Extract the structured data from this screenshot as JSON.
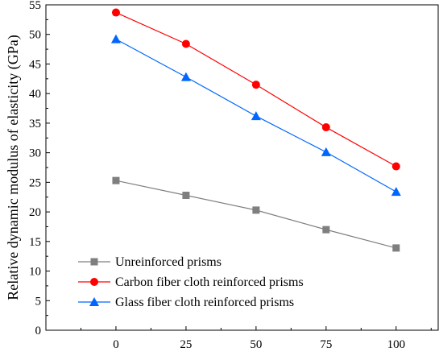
{
  "chart_data": {
    "type": "line",
    "title": "",
    "xlabel": "",
    "ylabel": "Relative dynamic modulus of elasticity (GPa)",
    "x": [
      0,
      25,
      50,
      75,
      100
    ],
    "xticks": [
      "0",
      "25",
      "50",
      "75",
      "100"
    ],
    "xlim": [
      -25,
      115
    ],
    "ylim": [
      0,
      55
    ],
    "yticks": [
      "0",
      "5",
      "10",
      "15",
      "20",
      "25",
      "30",
      "35",
      "40",
      "45",
      "50",
      "55"
    ],
    "grid": false,
    "legend_position": "bottom-left",
    "series": [
      {
        "name": "Unreinforced prisms",
        "marker": "square",
        "color": "#7f7f7f",
        "values": [
          25.3,
          22.8,
          20.3,
          17.0,
          13.9
        ]
      },
      {
        "name": "Carbon fiber cloth reinforced prisms",
        "marker": "circle",
        "color": "#ff0000",
        "values": [
          53.7,
          48.4,
          41.5,
          34.3,
          27.7
        ]
      },
      {
        "name": "Glass fiber cloth reinforced prisms",
        "marker": "triangle",
        "color": "#0066ff",
        "values": [
          49.2,
          42.8,
          36.2,
          30.1,
          23.4
        ]
      }
    ]
  }
}
